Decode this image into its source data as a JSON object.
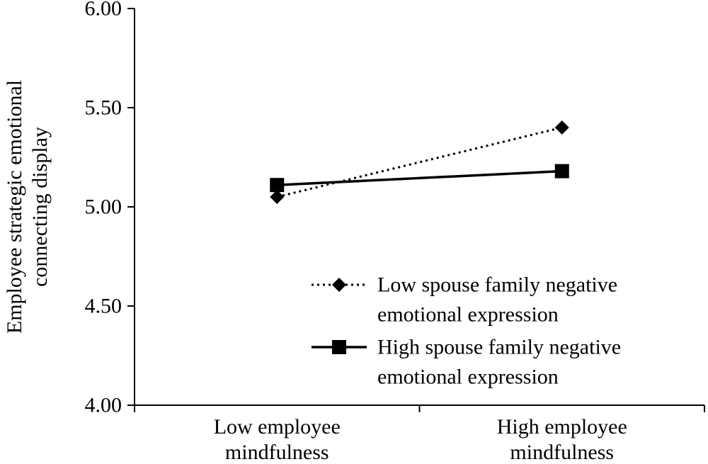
{
  "chart_data": {
    "type": "line",
    "title": "",
    "xlabel": "",
    "ylabel": [
      "Employee strategic emotional",
      "connecting display"
    ],
    "categories": [
      [
        "Low employee",
        "mindfulness"
      ],
      [
        "High employee",
        "mindfulness"
      ]
    ],
    "ylim": [
      4.0,
      6.0
    ],
    "yticks": [
      "4.00",
      "4.50",
      "5.00",
      "5.50",
      "6.00"
    ],
    "grid": false,
    "legend_position": "bottom-right",
    "series": [
      {
        "name": [
          "Low spouse family negative",
          "emotional expression"
        ],
        "values": [
          5.05,
          5.4
        ],
        "line_style": "dotted",
        "marker": "diamond",
        "color": "#000000"
      },
      {
        "name": [
          "High spouse family negative",
          "emotional expression"
        ],
        "values": [
          5.11,
          5.18
        ],
        "line_style": "solid",
        "marker": "square",
        "color": "#000000"
      }
    ]
  }
}
